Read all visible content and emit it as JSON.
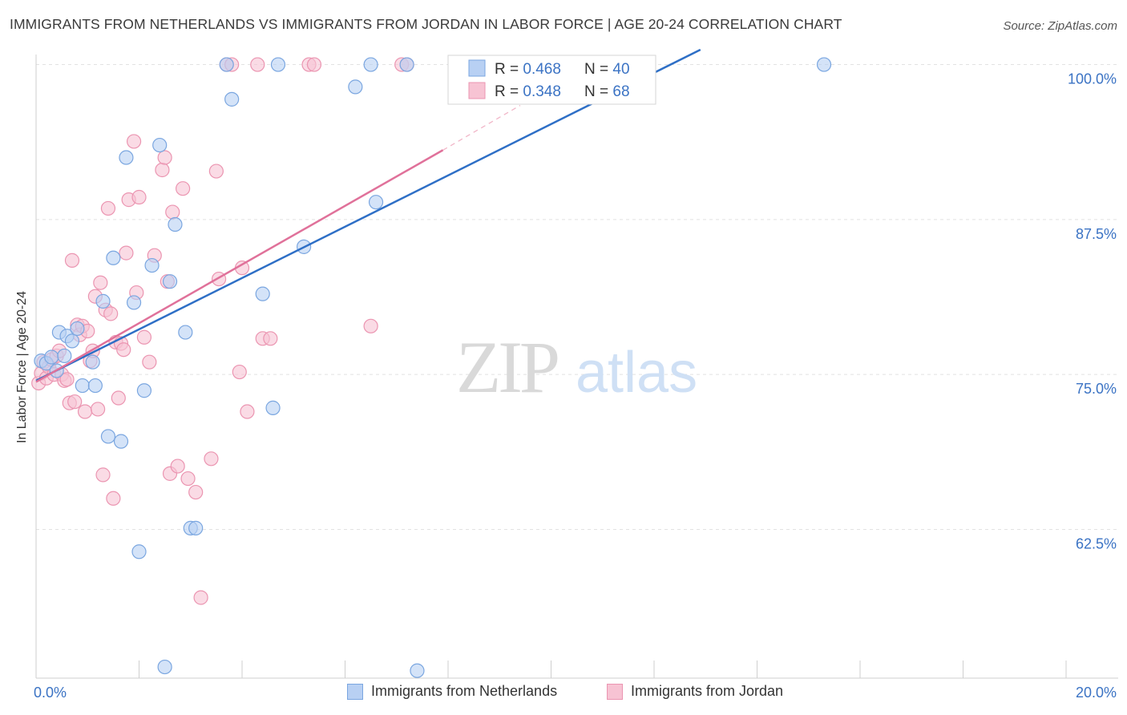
{
  "header": {
    "title": "IMMIGRANTS FROM NETHERLANDS VS IMMIGRANTS FROM JORDAN IN LABOR FORCE | AGE 20-24 CORRELATION CHART",
    "source": "Source: ZipAtlas.com"
  },
  "watermark": {
    "zip": "ZIP",
    "atlas": "atlas"
  },
  "colors": {
    "netherlands_fill": "#b8d0f3",
    "netherlands_stroke": "#7aa6e0",
    "netherlands_line": "#2e6fc6",
    "jordan_fill": "#f7c3d3",
    "jordan_stroke": "#eb95b1",
    "jordan_line": "#e0719a",
    "tick_label": "#3b73c4",
    "grid": "#e2e2e2"
  },
  "legend_top": {
    "rows": [
      {
        "r_label": "R = ",
        "r_value": "0.468",
        "n_label": "N = ",
        "n_value": "40"
      },
      {
        "r_label": "R = ",
        "r_value": "0.348",
        "n_label": "N = ",
        "n_value": "68"
      }
    ]
  },
  "chart_data": {
    "type": "scatter",
    "title": "IMMIGRANTS FROM NETHERLANDS VS IMMIGRANTS FROM JORDAN IN LABOR FORCE | AGE 20-24 CORRELATION CHART",
    "xlabel": "",
    "ylabel": "In Labor Force | Age 20-24",
    "xlim": [
      0,
      20
    ],
    "ylim": [
      50.5,
      101.2
    ],
    "x_tick_labels": [
      {
        "value": 0,
        "label": "0.0%"
      },
      {
        "value": 20,
        "label": "20.0%"
      }
    ],
    "y_tick_labels": [
      {
        "value": 100,
        "label": "100.0%"
      },
      {
        "value": 87.5,
        "label": "87.5%"
      },
      {
        "value": 75,
        "label": "75.0%"
      },
      {
        "value": 62.5,
        "label": "62.5%"
      }
    ],
    "y_grid": [
      100,
      87.5,
      75,
      62.5
    ],
    "x_minor_ticks": [
      2,
      4,
      6,
      8,
      10,
      12,
      14,
      16,
      18,
      20
    ],
    "legend_placement": "top-center",
    "series": [
      {
        "name": "Immigrants from Netherlands",
        "r": 0.468,
        "n": 40,
        "trend": {
          "x0": 0,
          "y0": 74.5,
          "x1": 12.9,
          "y1": 101.2
        },
        "points": [
          [
            0.1,
            76.1
          ],
          [
            0.2,
            75.9
          ],
          [
            0.3,
            76.4
          ],
          [
            0.4,
            75.3
          ],
          [
            0.45,
            78.4
          ],
          [
            0.55,
            76.5
          ],
          [
            0.6,
            78.1
          ],
          [
            0.7,
            77.7
          ],
          [
            0.8,
            78.7
          ],
          [
            0.9,
            74.1
          ],
          [
            1.1,
            76.0
          ],
          [
            1.15,
            74.1
          ],
          [
            1.3,
            80.9
          ],
          [
            1.4,
            70.0
          ],
          [
            1.5,
            84.4
          ],
          [
            1.65,
            69.6
          ],
          [
            1.75,
            92.5
          ],
          [
            1.9,
            80.8
          ],
          [
            2.0,
            60.7
          ],
          [
            2.1,
            73.7
          ],
          [
            2.25,
            83.8
          ],
          [
            2.4,
            93.5
          ],
          [
            2.5,
            51.4
          ],
          [
            2.6,
            82.5
          ],
          [
            2.7,
            87.1
          ],
          [
            2.9,
            78.4
          ],
          [
            3.0,
            62.6
          ],
          [
            3.1,
            62.6
          ],
          [
            3.7,
            100.0
          ],
          [
            3.8,
            97.2
          ],
          [
            4.4,
            81.5
          ],
          [
            4.6,
            72.3
          ],
          [
            4.7,
            100.0
          ],
          [
            5.2,
            85.3
          ],
          [
            6.2,
            98.2
          ],
          [
            6.5,
            100.0
          ],
          [
            6.6,
            88.9
          ],
          [
            7.2,
            100.0
          ],
          [
            7.4,
            51.1
          ],
          [
            15.3,
            100.0
          ]
        ]
      },
      {
        "name": "Immigrants from Jordan",
        "r": 0.348,
        "n": 68,
        "trend": {
          "x0": 0,
          "y0": 74.4,
          "x1": 7.9,
          "y1": 93.1
        },
        "trend_dashed": {
          "x0": 7.9,
          "y0": 93.1,
          "x1": 9.4,
          "y1": 96.7
        },
        "points": [
          [
            0.05,
            74.3
          ],
          [
            0.1,
            75.1
          ],
          [
            0.15,
            76.0
          ],
          [
            0.2,
            74.7
          ],
          [
            0.25,
            75.6
          ],
          [
            0.3,
            76.2
          ],
          [
            0.35,
            75.0
          ],
          [
            0.4,
            76.5
          ],
          [
            0.45,
            76.9
          ],
          [
            0.5,
            75.0
          ],
          [
            0.55,
            74.5
          ],
          [
            0.6,
            74.6
          ],
          [
            0.65,
            72.7
          ],
          [
            0.7,
            84.2
          ],
          [
            0.75,
            72.8
          ],
          [
            0.8,
            79.0
          ],
          [
            0.85,
            78.2
          ],
          [
            0.9,
            78.9
          ],
          [
            0.95,
            72.0
          ],
          [
            1.0,
            78.5
          ],
          [
            1.05,
            76.1
          ],
          [
            1.1,
            76.9
          ],
          [
            1.15,
            81.3
          ],
          [
            1.2,
            72.2
          ],
          [
            1.25,
            82.4
          ],
          [
            1.3,
            66.9
          ],
          [
            1.35,
            80.2
          ],
          [
            1.4,
            88.4
          ],
          [
            1.45,
            79.9
          ],
          [
            1.5,
            65.0
          ],
          [
            1.55,
            77.6
          ],
          [
            1.6,
            73.1
          ],
          [
            1.65,
            77.5
          ],
          [
            1.7,
            77.0
          ],
          [
            1.75,
            84.8
          ],
          [
            1.8,
            89.1
          ],
          [
            1.9,
            93.8
          ],
          [
            1.95,
            81.6
          ],
          [
            2.0,
            89.3
          ],
          [
            2.1,
            78.0
          ],
          [
            2.2,
            76.0
          ],
          [
            2.3,
            84.6
          ],
          [
            2.45,
            91.5
          ],
          [
            2.5,
            92.5
          ],
          [
            2.55,
            82.5
          ],
          [
            2.6,
            67.0
          ],
          [
            2.65,
            88.1
          ],
          [
            2.75,
            67.6
          ],
          [
            2.85,
            90.0
          ],
          [
            2.95,
            66.6
          ],
          [
            3.1,
            65.5
          ],
          [
            3.2,
            57.0
          ],
          [
            3.4,
            68.2
          ],
          [
            3.5,
            91.4
          ],
          [
            3.55,
            82.7
          ],
          [
            3.7,
            100.0
          ],
          [
            3.8,
            100.0
          ],
          [
            3.95,
            75.2
          ],
          [
            4.0,
            83.6
          ],
          [
            4.1,
            72.0
          ],
          [
            4.3,
            100.0
          ],
          [
            4.4,
            77.9
          ],
          [
            4.55,
            77.9
          ],
          [
            5.3,
            100.0
          ],
          [
            5.4,
            100.0
          ],
          [
            6.5,
            78.9
          ],
          [
            7.1,
            100.0
          ],
          [
            7.2,
            100.0
          ]
        ]
      }
    ]
  }
}
